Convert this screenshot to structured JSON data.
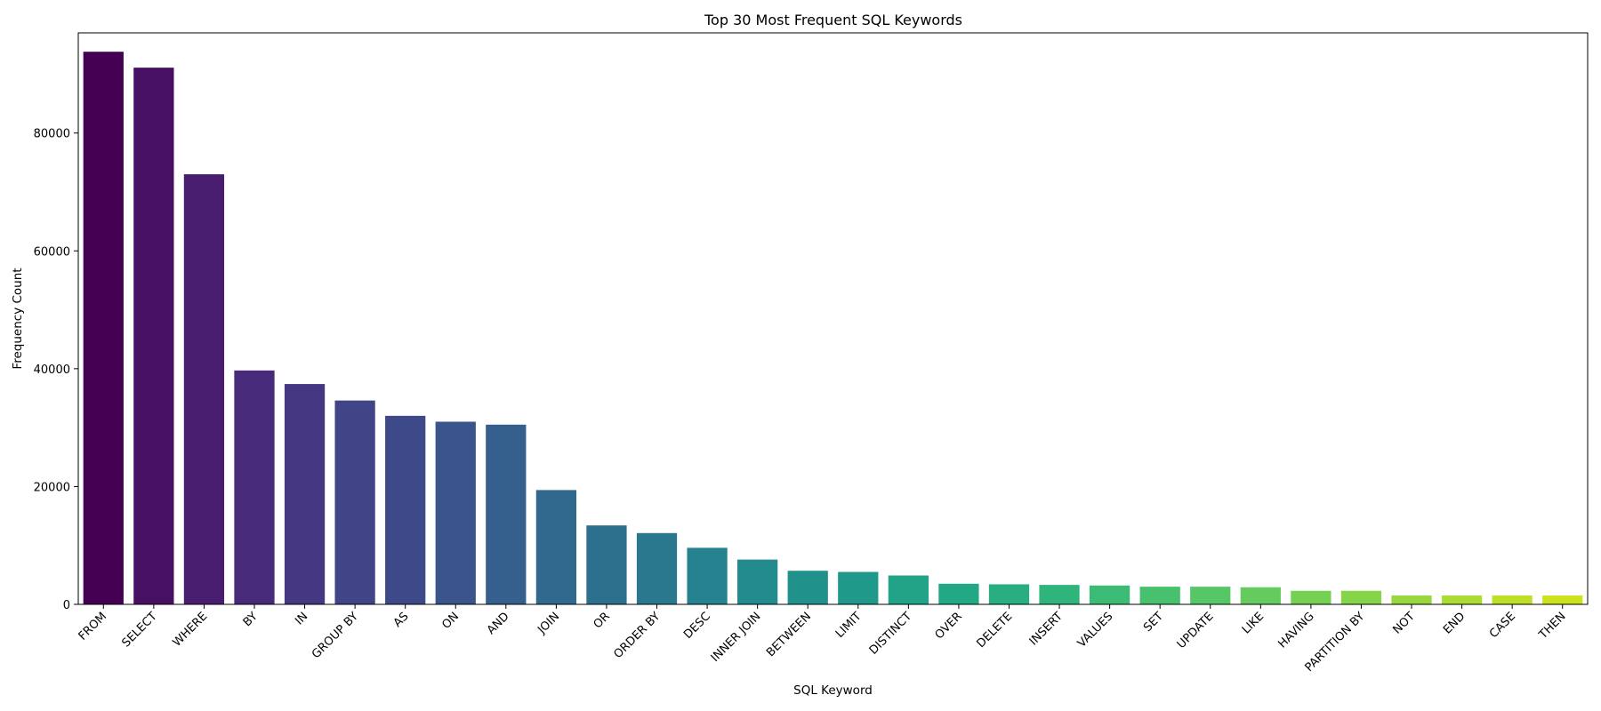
{
  "chart_data": {
    "type": "bar",
    "title": "Top 30 Most Frequent SQL Keywords",
    "xlabel": "SQL Keyword",
    "ylabel": "Frequency Count",
    "ylim": [
      0,
      97000
    ],
    "yticks": [
      0,
      20000,
      40000,
      60000,
      80000
    ],
    "grid": false,
    "legend": "none",
    "categories": [
      "FROM",
      "SELECT",
      "WHERE",
      "BY",
      "IN",
      "GROUP BY",
      "AS",
      "ON",
      "AND",
      "JOIN",
      "OR",
      "ORDER BY",
      "DESC",
      "INNER JOIN",
      "BETWEEN",
      "LIMIT",
      "DISTINCT",
      "OVER",
      "DELETE",
      "INSERT",
      "VALUES",
      "SET",
      "UPDATE",
      "LIKE",
      "HAVING",
      "PARTITION BY",
      "NOT",
      "END",
      "CASE",
      "THEN"
    ],
    "values": [
      93800,
      91100,
      73000,
      39700,
      37400,
      34600,
      32000,
      31000,
      30500,
      19400,
      13400,
      12100,
      9600,
      7600,
      5700,
      5500,
      4900,
      3500,
      3400,
      3300,
      3200,
      3000,
      3000,
      2900,
      2300,
      2300,
      1500,
      1500,
      1500,
      1500
    ],
    "colors": [
      "#440154",
      "#471063",
      "#481d6f",
      "#472a7a",
      "#453781",
      "#414487",
      "#3e4989",
      "#3a548c",
      "#355f8d",
      "#31688e",
      "#2d708e",
      "#2a788e",
      "#26828e",
      "#238a8d",
      "#21918c",
      "#1f998a",
      "#20a386",
      "#22a884",
      "#28ae80",
      "#2fb47c",
      "#3bbb75",
      "#48c16e",
      "#56c667",
      "#65cb5e",
      "#75d054",
      "#86d549",
      "#98d83e",
      "#aadc32",
      "#bddf26",
      "#cde11d"
    ]
  }
}
